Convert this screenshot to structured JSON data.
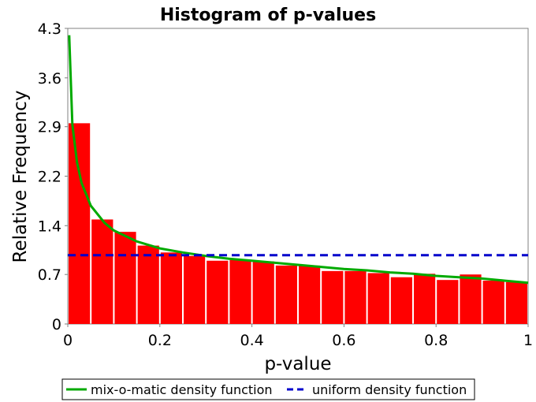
{
  "colors": {
    "bar": "#ff0000",
    "density_curve": "#00aa00",
    "uniform_line": "#0000cc",
    "plot_background": "#ffffff",
    "plot_border": "#808080"
  },
  "chart_data": {
    "type": "bar",
    "title": "Histogram of p-values",
    "xlabel": "p-value",
    "ylabel": "Relative Frequency",
    "xlim": [
      0,
      1
    ],
    "ylim": [
      0,
      4.3
    ],
    "xticks": [
      "0",
      "0.2",
      "0.4",
      "0.6",
      "0.8",
      "1"
    ],
    "xtick_values": [
      0,
      0.2,
      0.4,
      0.6,
      0.8,
      1
    ],
    "yticks": [
      "0",
      "0.7",
      "1.4",
      "2.2",
      "2.9",
      "3.6",
      "4.3"
    ],
    "ytick_values": [
      0,
      0.72,
      1.43,
      2.15,
      2.87,
      3.58,
      4.3
    ],
    "grid": false,
    "legend_position": "bottom",
    "bins": {
      "start": 0,
      "width": 0.05,
      "values": [
        2.92,
        1.52,
        1.34,
        1.14,
        1.04,
        0.99,
        0.92,
        0.93,
        0.91,
        0.85,
        0.85,
        0.77,
        0.77,
        0.74,
        0.68,
        0.73,
        0.64,
        0.72,
        0.63,
        0.61
      ]
    },
    "series": [
      {
        "name": "mix-o-matic density function",
        "type": "line",
        "style": "solid",
        "x": [
          0.003,
          0.01,
          0.02,
          0.03,
          0.05,
          0.08,
          0.1,
          0.15,
          0.2,
          0.25,
          0.3,
          0.35,
          0.4,
          0.45,
          0.5,
          0.55,
          0.6,
          0.65,
          0.7,
          0.75,
          0.8,
          0.85,
          0.9,
          0.95,
          1.0
        ],
        "y": [
          4.2,
          2.9,
          2.35,
          2.05,
          1.72,
          1.47,
          1.36,
          1.2,
          1.1,
          1.04,
          0.99,
          0.95,
          0.92,
          0.89,
          0.86,
          0.83,
          0.8,
          0.78,
          0.75,
          0.73,
          0.7,
          0.68,
          0.66,
          0.63,
          0.6
        ]
      },
      {
        "name": "uniform density function",
        "type": "line",
        "style": "dashed",
        "x": [
          0,
          1
        ],
        "y": [
          1,
          1
        ]
      }
    ]
  }
}
